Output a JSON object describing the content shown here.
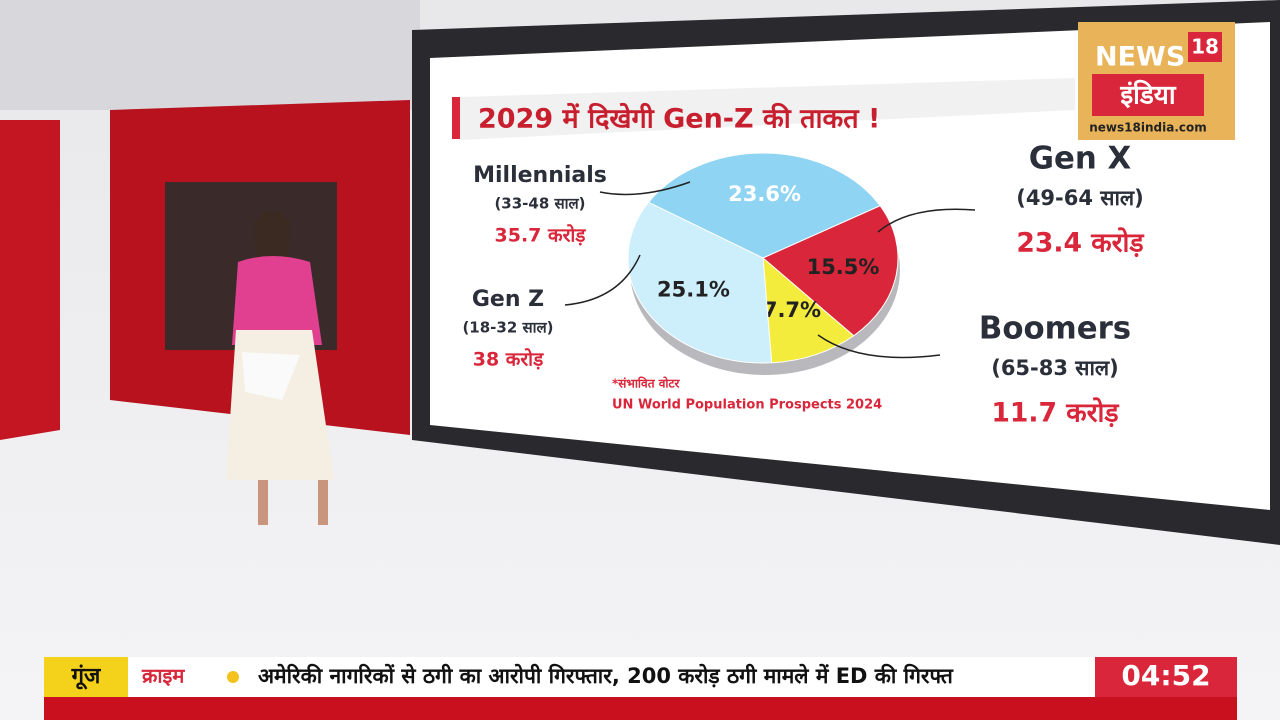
{
  "header": {
    "logo_top": "NEWS",
    "logo_num": "18",
    "logo_hindi": "इंडिया",
    "logo_url": "news18india.com"
  },
  "chart_data": {
    "type": "pie",
    "title": "2029 में दिखेगी Gen-Z की ताकत !",
    "categories": [
      "Millennials",
      "Gen X",
      "Boomers",
      "Gen Z"
    ],
    "values": [
      23.6,
      15.5,
      7.7,
      25.1
    ],
    "value_labels": [
      "23.6%",
      "15.5%",
      "7.7%",
      "25.1%"
    ],
    "colors": [
      "#8fd4f2",
      "#d9263a",
      "#f4ec3c",
      "#cdeefb"
    ],
    "age_ranges": [
      "(33-48 साल)",
      "(49-64 साल)",
      "(65-83 साल)",
      "(18-32 साल)"
    ],
    "voter_counts": [
      "35.7 करोड़",
      "23.4 करोड़",
      "11.7 करोड़",
      "38 करोड़"
    ],
    "note": "*संभावित वोटर",
    "source": "UN World Population Prospects 2024"
  },
  "ticker": {
    "tag": "गूंज",
    "category": "क्राइम",
    "headline": "अमेरिकी नागरिकों से ठगी का आरोपी गिरफ्तार, 200 करोड़ ठगी मामले में ED की गिरफ्त",
    "time": "04:52"
  }
}
